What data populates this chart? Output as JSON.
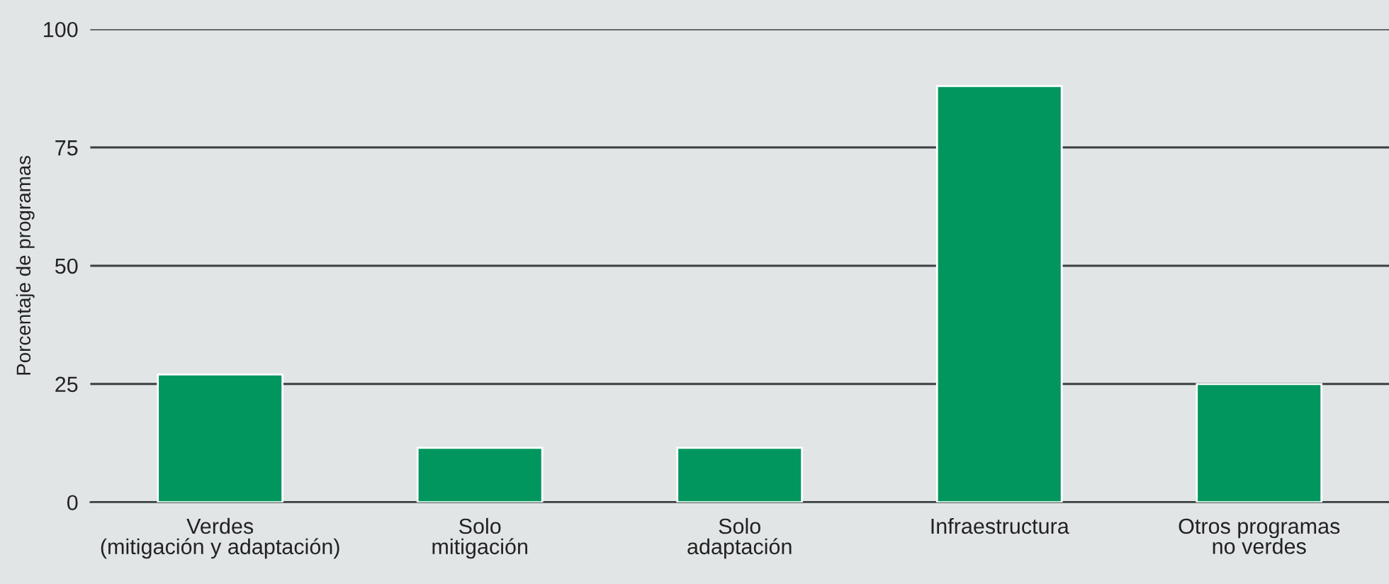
{
  "chart_data": {
    "type": "bar",
    "ylabel": "Porcentaje de programas",
    "categories": [
      "Verdes\n(mitigación y adaptación)",
      "Solo\nmitigación",
      "Solo\nadaptación",
      "Infraestructura",
      "Otros programas\nno verdes"
    ],
    "values": [
      27,
      11.5,
      11.5,
      88,
      25
    ],
    "color": "#00965e",
    "ylim": [
      0,
      100
    ],
    "yticks": [
      0,
      25,
      50,
      75,
      100
    ],
    "grid": "y"
  }
}
